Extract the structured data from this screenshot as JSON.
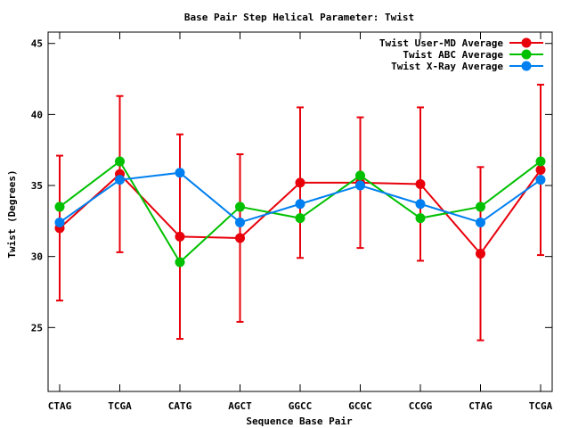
{
  "chart_data": {
    "type": "line",
    "title": "Base Pair Step Helical Parameter: Twist",
    "xlabel": "Sequence Base Pair",
    "ylabel": "Twist (Degrees)",
    "categories": [
      "CTAG",
      "TCGA",
      "CATG",
      "AGCT",
      "GGCC",
      "GCGC",
      "CCGG",
      "CTAG",
      "TCGA"
    ],
    "ylim": [
      20.5,
      45.8
    ],
    "yticks": [
      25,
      30,
      35,
      40,
      45
    ],
    "grid": false,
    "legend_position": "top-right",
    "series": [
      {
        "name": "Twist User-MD Average",
        "color": "#e8000b",
        "values": [
          32.0,
          35.8,
          31.4,
          31.3,
          35.2,
          35.2,
          35.1,
          30.2,
          36.1
        ],
        "error": [
          5.1,
          5.5,
          7.2,
          5.9,
          5.3,
          4.6,
          5.4,
          6.1,
          6.0
        ]
      },
      {
        "name": "Twist ABC Average",
        "color": "#00c000",
        "values": [
          33.5,
          36.7,
          29.6,
          33.5,
          32.7,
          35.7,
          32.7,
          33.5,
          36.7
        ]
      },
      {
        "name": "Twist X-Ray Average",
        "color": "#0080f0",
        "values": [
          32.4,
          35.4,
          35.9,
          32.4,
          33.7,
          35.0,
          33.7,
          32.4,
          35.4
        ]
      }
    ]
  }
}
